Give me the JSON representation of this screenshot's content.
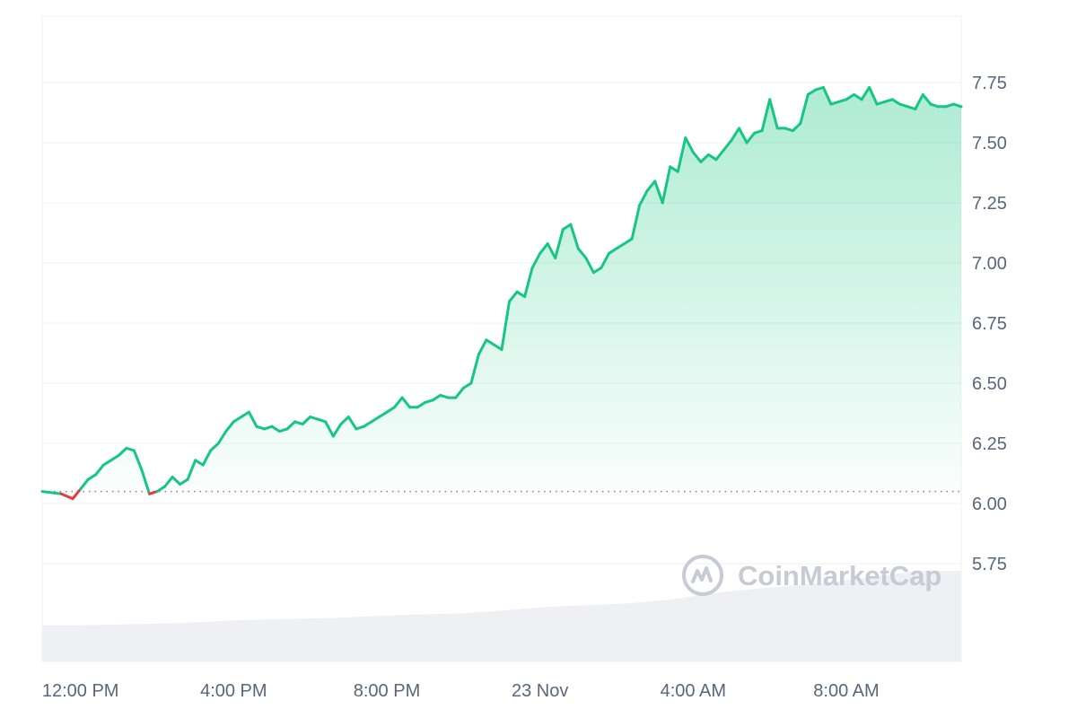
{
  "chart_data": {
    "type": "area",
    "title": "",
    "xlabel": "",
    "ylabel": "",
    "x_tick_labels": [
      "12:00 PM",
      "4:00 PM",
      "8:00 PM",
      "23 Nov",
      "4:00 AM",
      "8:00 AM"
    ],
    "x_range_hours": [
      0,
      24
    ],
    "x_ticks_hours": [
      1,
      5,
      9,
      13,
      17,
      21
    ],
    "y_ticks": [
      "5.75",
      "6.00",
      "6.25",
      "6.50",
      "6.75",
      "7.00",
      "7.25",
      "7.50",
      "7.75"
    ],
    "ylim": [
      5.4,
      8.0
    ],
    "baseline": 6.05,
    "grid": true,
    "colors": {
      "up": "#16c784",
      "down": "#ea3943",
      "volume": "#eef0f3",
      "grid": "#eff2f5"
    },
    "series": [
      {
        "x": [
          0,
          0.5,
          0.8,
          1.0,
          1.2,
          1.4,
          1.6,
          1.8,
          2.0,
          2.2,
          2.4,
          2.6,
          2.8,
          3.0,
          3.2,
          3.4,
          3.6,
          3.8,
          4.0,
          4.2,
          4.4,
          4.6,
          4.8,
          5.0,
          5.2,
          5.4,
          5.6,
          5.8,
          6.0,
          6.2,
          6.4,
          6.6,
          6.8,
          7.0,
          7.2,
          7.4,
          7.6,
          7.8,
          8.0,
          8.2,
          8.4,
          8.6,
          8.8,
          9.0,
          9.2,
          9.4,
          9.6,
          9.8,
          10.0,
          10.2,
          10.4,
          10.6,
          10.8,
          11.0,
          11.2,
          11.4,
          11.6,
          11.8,
          12.0,
          12.2,
          12.4,
          12.6,
          12.8,
          13.0,
          13.2,
          13.4,
          13.6,
          13.8,
          14.0,
          14.2,
          14.4,
          14.6,
          14.8,
          15.0,
          15.2,
          15.4,
          15.6,
          15.8,
          16.0,
          16.2,
          16.4,
          16.6,
          16.8,
          17.0,
          17.2,
          17.4,
          17.6,
          17.8,
          18.0,
          18.2,
          18.4,
          18.6,
          18.8,
          19.0,
          19.2,
          19.4,
          19.6,
          19.8,
          20.0,
          20.2,
          20.4,
          20.6,
          20.8,
          21.0,
          21.2,
          21.4,
          21.6,
          21.8,
          22.0,
          22.2,
          22.4,
          22.6,
          22.8,
          23.0,
          23.2,
          23.4,
          23.6,
          23.8,
          24.0
        ],
        "values": [
          6.05,
          6.04,
          6.02,
          6.06,
          6.1,
          6.12,
          6.16,
          6.18,
          6.2,
          6.23,
          6.22,
          6.14,
          6.04,
          6.05,
          6.07,
          6.11,
          6.08,
          6.1,
          6.18,
          6.16,
          6.22,
          6.25,
          6.3,
          6.34,
          6.36,
          6.38,
          6.32,
          6.31,
          6.32,
          6.3,
          6.31,
          6.34,
          6.33,
          6.36,
          6.35,
          6.34,
          6.28,
          6.33,
          6.36,
          6.31,
          6.32,
          6.34,
          6.36,
          6.38,
          6.4,
          6.44,
          6.4,
          6.4,
          6.42,
          6.43,
          6.45,
          6.44,
          6.44,
          6.48,
          6.5,
          6.62,
          6.68,
          6.66,
          6.64,
          6.84,
          6.88,
          6.86,
          6.98,
          7.04,
          7.08,
          7.02,
          7.14,
          7.16,
          7.06,
          7.02,
          6.96,
          6.98,
          7.04,
          7.06,
          7.08,
          7.1,
          7.24,
          7.3,
          7.34,
          7.25,
          7.4,
          7.38,
          7.52,
          7.46,
          7.42,
          7.45,
          7.43,
          7.47,
          7.51,
          7.56,
          7.5,
          7.54,
          7.55,
          7.68,
          7.56,
          7.56,
          7.55,
          7.58,
          7.7,
          7.72,
          7.73,
          7.66,
          7.67,
          7.68,
          7.7,
          7.68,
          7.73,
          7.66,
          7.67,
          7.68,
          7.66,
          7.65,
          7.64,
          7.7,
          7.66,
          7.65,
          7.65,
          7.66,
          7.65
        ]
      }
    ],
    "volume_relative": [
      0.4,
      0.4,
      0.41,
      0.42,
      0.44,
      0.46,
      0.47,
      0.48,
      0.5,
      0.52,
      0.53,
      0.56,
      0.6,
      0.62,
      0.64,
      0.68,
      0.75,
      0.8,
      0.84,
      0.88,
      0.94,
      1.0,
      1.0
    ],
    "watermark": "CoinMarketCap"
  }
}
